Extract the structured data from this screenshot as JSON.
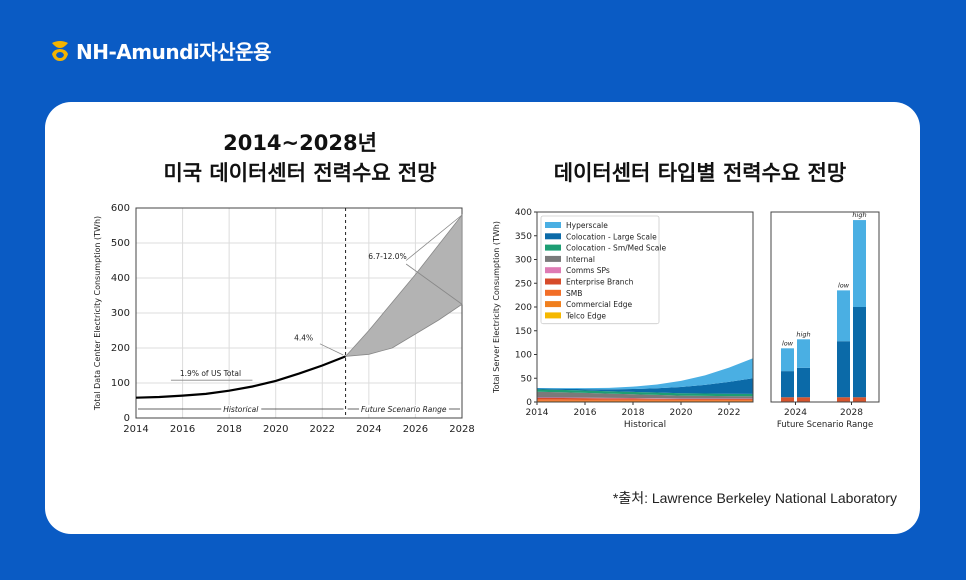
{
  "header": {
    "brand_name": "NH-Amundi자산운용",
    "logo_icon": "nh-logo-icon",
    "logo_color": "#f4b400"
  },
  "titles": {
    "left_line1": "2014~2028년",
    "left_line2": "미국 데이터센터 전력수요 전망",
    "right": "데이터센터 타입별 전력수요 전망"
  },
  "source_note": "*출처: Lawrence Berkeley National Laboratory",
  "chart_data": [
    {
      "type": "line",
      "ylabel": "Total Data Center Electricity Consumption (TWh)",
      "xlim": [
        2014,
        2028
      ],
      "ylim": [
        0,
        600
      ],
      "x_ticks": [
        "2014",
        "2016",
        "2018",
        "2020",
        "2022",
        "2024",
        "2026",
        "2028"
      ],
      "y_ticks": [
        "0",
        "100",
        "200",
        "300",
        "400",
        "500",
        "600"
      ],
      "grid": true,
      "historical": {
        "x": [
          2014,
          2015,
          2016,
          2017,
          2018,
          2019,
          2020,
          2021,
          2022,
          2023
        ],
        "y": [
          58,
          60,
          64,
          69,
          78,
          90,
          106,
          127,
          150,
          176
        ]
      },
      "scenario_range": {
        "x": [
          2023,
          2024,
          2025,
          2026,
          2027,
          2028
        ],
        "low": [
          176,
          182,
          200,
          240,
          280,
          325
        ],
        "high": [
          176,
          250,
          330,
          410,
          495,
          580
        ]
      },
      "annotations": [
        "1.9% of US Total",
        "4.4%",
        "6.7-12.0%"
      ],
      "period_labels": [
        "Historical",
        "Future Scenario Range"
      ],
      "colors": {
        "line": "#000000",
        "band": "#b3b3b3"
      }
    },
    {
      "type": "area",
      "ylabel": "Total Server Electricity Consumption (TWh)",
      "xlabel": "Historical",
      "xlim": [
        2014,
        2023
      ],
      "ylim": [
        0,
        400
      ],
      "x_ticks": [
        "2014",
        "2016",
        "2018",
        "2020",
        "2022"
      ],
      "y_ticks": [
        "0",
        "50",
        "100",
        "150",
        "200",
        "250",
        "300",
        "350",
        "400"
      ],
      "x": [
        2014,
        2015,
        2016,
        2017,
        2018,
        2019,
        2020,
        2021,
        2022,
        2023
      ],
      "series": [
        {
          "name": "Telco Edge",
          "color": "#f5b800",
          "values": [
            0.5,
            0.5,
            0.5,
            0.5,
            0.5,
            0.5,
            0.5,
            0.5,
            0.5,
            0.5
          ]
        },
        {
          "name": "Commercial Edge",
          "color": "#f07f1e",
          "values": [
            2,
            2,
            2,
            2,
            2,
            2,
            2,
            2,
            2,
            2
          ]
        },
        {
          "name": "SMB",
          "color": "#f26e27",
          "values": [
            3,
            3,
            2.8,
            2.6,
            2.4,
            2.2,
            2,
            2,
            2,
            2
          ]
        },
        {
          "name": "Enterprise Branch",
          "color": "#d64b2a",
          "values": [
            3,
            3,
            2.8,
            2.6,
            2.4,
            2.2,
            2,
            2,
            2,
            2
          ]
        },
        {
          "name": "Comms SPs",
          "color": "#de7bb4",
          "values": [
            1,
            1,
            1,
            1,
            1,
            1,
            1,
            1,
            1,
            1
          ]
        },
        {
          "name": "Internal",
          "color": "#7a7a7a",
          "values": [
            12,
            11,
            10,
            9,
            8,
            7,
            6,
            5.5,
            5,
            4.5
          ]
        },
        {
          "name": "Colocation - Sm/Med Scale",
          "color": "#1d9e73",
          "values": [
            5,
            5,
            5,
            5,
            5,
            5,
            5,
            5,
            5,
            5
          ]
        },
        {
          "name": "Colocation - Large Scale",
          "color": "#0b6aa8",
          "values": [
            2,
            2.5,
            3,
            4,
            6,
            9,
            13,
            18,
            25,
            33
          ]
        },
        {
          "name": "Hyperscale",
          "color": "#4aafe3",
          "values": [
            1,
            1.5,
            2,
            3,
            5,
            8,
            13,
            20,
            30,
            42
          ]
        }
      ]
    },
    {
      "type": "bar",
      "xlabel": "Future Scenario Range",
      "categories": [
        "2024",
        "2028"
      ],
      "ylim": [
        0,
        400
      ],
      "bar_labels": [
        "low",
        "high"
      ],
      "bars": [
        {
          "year": "2024",
          "scenario": "low",
          "components": {
            "base": 10,
            "colocation_large": 55,
            "hyperscale": 48
          }
        },
        {
          "year": "2024",
          "scenario": "high",
          "components": {
            "base": 10,
            "colocation_large": 62,
            "hyperscale": 60
          }
        },
        {
          "year": "2028",
          "scenario": "low",
          "components": {
            "base": 10,
            "colocation_large": 118,
            "hyperscale": 107
          }
        },
        {
          "year": "2028",
          "scenario": "high",
          "components": {
            "base": 10,
            "colocation_large": 190,
            "hyperscale": 183
          }
        }
      ],
      "colors": {
        "base": "#d6542d",
        "colocation_large": "#0b6aa8",
        "hyperscale": "#4aafe3"
      }
    }
  ]
}
